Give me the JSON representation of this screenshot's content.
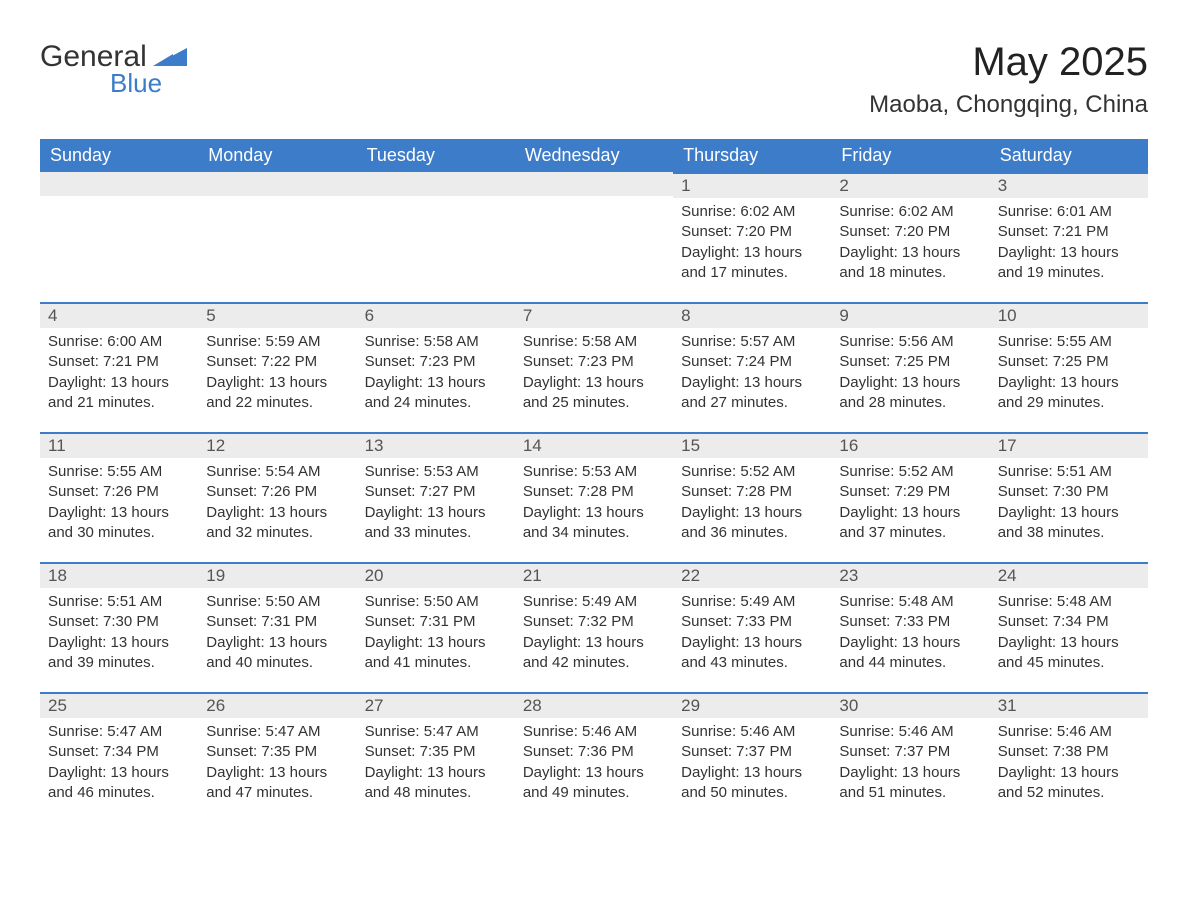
{
  "logo": {
    "text1": "General",
    "text2": "Blue",
    "shape_color": "#3d7cc9"
  },
  "title": "May 2025",
  "location": "Maoba, Chongqing, China",
  "header_bg": "#3d7cc9",
  "header_text_color": "#ffffff",
  "daynum_bg": "#ececec",
  "daynum_border": "#3d7cc9",
  "weekdays": [
    "Sunday",
    "Monday",
    "Tuesday",
    "Wednesday",
    "Thursday",
    "Friday",
    "Saturday"
  ],
  "weeks": [
    [
      null,
      null,
      null,
      null,
      {
        "n": "1",
        "sunrise": "6:02 AM",
        "sunset": "7:20 PM",
        "daylight": "13 hours and 17 minutes."
      },
      {
        "n": "2",
        "sunrise": "6:02 AM",
        "sunset": "7:20 PM",
        "daylight": "13 hours and 18 minutes."
      },
      {
        "n": "3",
        "sunrise": "6:01 AM",
        "sunset": "7:21 PM",
        "daylight": "13 hours and 19 minutes."
      }
    ],
    [
      {
        "n": "4",
        "sunrise": "6:00 AM",
        "sunset": "7:21 PM",
        "daylight": "13 hours and 21 minutes."
      },
      {
        "n": "5",
        "sunrise": "5:59 AM",
        "sunset": "7:22 PM",
        "daylight": "13 hours and 22 minutes."
      },
      {
        "n": "6",
        "sunrise": "5:58 AM",
        "sunset": "7:23 PM",
        "daylight": "13 hours and 24 minutes."
      },
      {
        "n": "7",
        "sunrise": "5:58 AM",
        "sunset": "7:23 PM",
        "daylight": "13 hours and 25 minutes."
      },
      {
        "n": "8",
        "sunrise": "5:57 AM",
        "sunset": "7:24 PM",
        "daylight": "13 hours and 27 minutes."
      },
      {
        "n": "9",
        "sunrise": "5:56 AM",
        "sunset": "7:25 PM",
        "daylight": "13 hours and 28 minutes."
      },
      {
        "n": "10",
        "sunrise": "5:55 AM",
        "sunset": "7:25 PM",
        "daylight": "13 hours and 29 minutes."
      }
    ],
    [
      {
        "n": "11",
        "sunrise": "5:55 AM",
        "sunset": "7:26 PM",
        "daylight": "13 hours and 30 minutes."
      },
      {
        "n": "12",
        "sunrise": "5:54 AM",
        "sunset": "7:26 PM",
        "daylight": "13 hours and 32 minutes."
      },
      {
        "n": "13",
        "sunrise": "5:53 AM",
        "sunset": "7:27 PM",
        "daylight": "13 hours and 33 minutes."
      },
      {
        "n": "14",
        "sunrise": "5:53 AM",
        "sunset": "7:28 PM",
        "daylight": "13 hours and 34 minutes."
      },
      {
        "n": "15",
        "sunrise": "5:52 AM",
        "sunset": "7:28 PM",
        "daylight": "13 hours and 36 minutes."
      },
      {
        "n": "16",
        "sunrise": "5:52 AM",
        "sunset": "7:29 PM",
        "daylight": "13 hours and 37 minutes."
      },
      {
        "n": "17",
        "sunrise": "5:51 AM",
        "sunset": "7:30 PM",
        "daylight": "13 hours and 38 minutes."
      }
    ],
    [
      {
        "n": "18",
        "sunrise": "5:51 AM",
        "sunset": "7:30 PM",
        "daylight": "13 hours and 39 minutes."
      },
      {
        "n": "19",
        "sunrise": "5:50 AM",
        "sunset": "7:31 PM",
        "daylight": "13 hours and 40 minutes."
      },
      {
        "n": "20",
        "sunrise": "5:50 AM",
        "sunset": "7:31 PM",
        "daylight": "13 hours and 41 minutes."
      },
      {
        "n": "21",
        "sunrise": "5:49 AM",
        "sunset": "7:32 PM",
        "daylight": "13 hours and 42 minutes."
      },
      {
        "n": "22",
        "sunrise": "5:49 AM",
        "sunset": "7:33 PM",
        "daylight": "13 hours and 43 minutes."
      },
      {
        "n": "23",
        "sunrise": "5:48 AM",
        "sunset": "7:33 PM",
        "daylight": "13 hours and 44 minutes."
      },
      {
        "n": "24",
        "sunrise": "5:48 AM",
        "sunset": "7:34 PM",
        "daylight": "13 hours and 45 minutes."
      }
    ],
    [
      {
        "n": "25",
        "sunrise": "5:47 AM",
        "sunset": "7:34 PM",
        "daylight": "13 hours and 46 minutes."
      },
      {
        "n": "26",
        "sunrise": "5:47 AM",
        "sunset": "7:35 PM",
        "daylight": "13 hours and 47 minutes."
      },
      {
        "n": "27",
        "sunrise": "5:47 AM",
        "sunset": "7:35 PM",
        "daylight": "13 hours and 48 minutes."
      },
      {
        "n": "28",
        "sunrise": "5:46 AM",
        "sunset": "7:36 PM",
        "daylight": "13 hours and 49 minutes."
      },
      {
        "n": "29",
        "sunrise": "5:46 AM",
        "sunset": "7:37 PM",
        "daylight": "13 hours and 50 minutes."
      },
      {
        "n": "30",
        "sunrise": "5:46 AM",
        "sunset": "7:37 PM",
        "daylight": "13 hours and 51 minutes."
      },
      {
        "n": "31",
        "sunrise": "5:46 AM",
        "sunset": "7:38 PM",
        "daylight": "13 hours and 52 minutes."
      }
    ]
  ],
  "labels": {
    "sunrise": "Sunrise: ",
    "sunset": "Sunset: ",
    "daylight": "Daylight: "
  }
}
